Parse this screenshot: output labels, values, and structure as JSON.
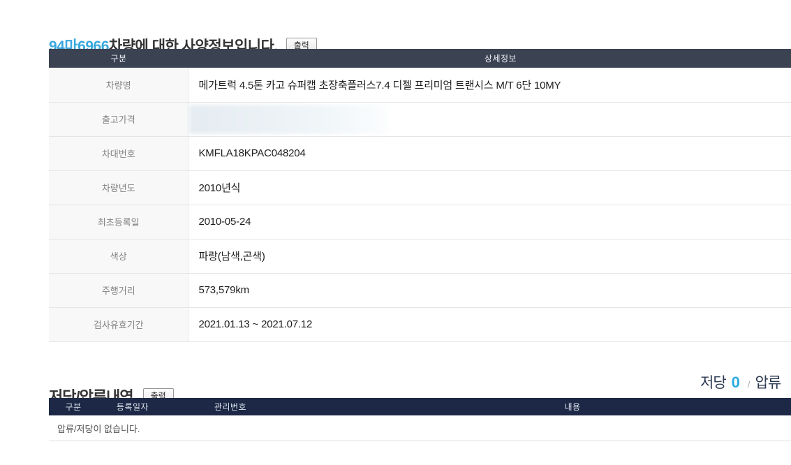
{
  "header": {
    "plate_number": "94마6966",
    "title_rest": " 차량에 대한 사양정보입니다.",
    "print_label": "출력"
  },
  "spec": {
    "col_headers": [
      "구분",
      "상세정보"
    ],
    "rows": [
      {
        "label": "차량명",
        "value": "메가트럭 4.5톤 카고 슈퍼캡 초장축플러스7.4 디젤 프리미엄 트랜시스 M/T 6단 10MY"
      },
      {
        "label": "출고가격",
        "value": ""
      },
      {
        "label": "차대번호",
        "value": "KMFLA18KPAC048204"
      },
      {
        "label": "차량년도",
        "value": "2010년식"
      },
      {
        "label": "최초등록일",
        "value": "2010-05-24"
      },
      {
        "label": "색상",
        "value": "파랑(남색,곤색)"
      },
      {
        "label": "주행거리",
        "value": "573,579km"
      },
      {
        "label": "검사유효기간",
        "value": "2021.01.13 ~ 2021.07.12"
      }
    ]
  },
  "lien": {
    "title": "저당/압류내역",
    "print_label": "출력",
    "summary": {
      "mortgage_label": "저당",
      "mortgage_count": "0",
      "separator": "/",
      "seizure_label": "압류"
    },
    "col_headers": [
      "구분",
      "등록일자",
      "관리번호",
      "내용"
    ],
    "empty_message": "압류/저당이 없습니다."
  },
  "colors": {
    "accent_blue": "#3aa8dd",
    "count_blue": "#2ba9e0",
    "spec_header_bg": "#3b4252",
    "lien_header_bg": "#1c2845"
  }
}
